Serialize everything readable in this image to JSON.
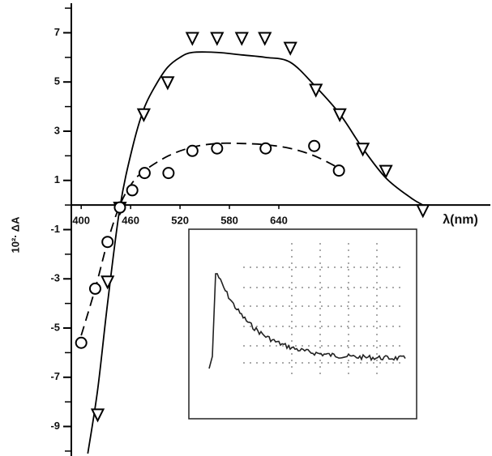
{
  "chart_data": {
    "type": "scatter",
    "x_label": "λ(nm)",
    "y_label": "10²· ΔA",
    "xlim": [
      388,
      892
    ],
    "ylim": [
      -10.2,
      8.2
    ],
    "xticks": [
      400,
      460,
      520,
      580,
      640
    ],
    "yticks": [
      7,
      5,
      3,
      1,
      -1,
      -3,
      -5,
      -7,
      -9
    ],
    "yminor_ticks": [
      8,
      6,
      4,
      2,
      0,
      -2,
      -4,
      -6,
      -8,
      -10
    ],
    "series": [
      {
        "marker": "triangle",
        "color": "#000000",
        "x": [
          420,
          432,
          447,
          476,
          505,
          535,
          565,
          595,
          623,
          654,
          685,
          714,
          742,
          770,
          815
        ],
        "values": [
          -8.5,
          -3.1,
          -0.1,
          3.7,
          5.0,
          6.8,
          6.8,
          6.8,
          6.8,
          6.4,
          4.7,
          3.7,
          2.3,
          1.4,
          -0.2
        ]
      },
      {
        "marker": "circle",
        "color": "#000000",
        "x": [
          400,
          417,
          432,
          447,
          462,
          477,
          506,
          535,
          565,
          624,
          683,
          713
        ],
        "values": [
          -5.6,
          -3.4,
          -1.5,
          -0.1,
          0.6,
          1.3,
          1.3,
          2.2,
          2.3,
          2.3,
          2.4,
          1.4
        ]
      },
      {
        "line_style": "solid",
        "color": "#000000",
        "x": [
          408,
          420,
          432,
          447,
          462,
          476,
          491,
          505,
          520,
          535,
          565,
          595,
          624,
          654,
          685,
          714,
          742,
          770,
          800,
          815
        ],
        "values": [
          -10.1,
          -7.5,
          -4.0,
          -0.1,
          2.3,
          3.9,
          4.9,
          5.6,
          6.0,
          6.2,
          6.2,
          6.1,
          6.0,
          5.8,
          4.8,
          3.7,
          2.3,
          1.1,
          0.3,
          0
        ]
      },
      {
        "line_style": "dashed",
        "color": "#000000",
        "x": [
          400,
          417,
          432,
          447,
          462,
          477,
          506,
          535,
          565,
          595,
          624,
          654,
          683,
          713
        ],
        "values": [
          -5.3,
          -3.4,
          -1.5,
          0,
          0.9,
          1.4,
          2.0,
          2.35,
          2.5,
          2.5,
          2.45,
          2.3,
          2.0,
          1.5
        ]
      }
    ]
  }
}
